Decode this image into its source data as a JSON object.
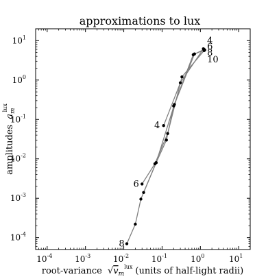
{
  "chart_data": {
    "type": "line",
    "title": "approximations to lux",
    "xlabel_prefix": "root-variance",
    "xlabel_suffix": "(units of half-light radii)",
    "ylabel_prefix": "amplitudes",
    "math": {
      "sqrt_v": "v",
      "sub_m": "m",
      "sup_lux": "lux",
      "a": "a"
    },
    "x_scale": "log",
    "y_scale": "log",
    "xlim": [
      5e-05,
      20
    ],
    "ylim": [
      5e-05,
      20
    ],
    "x_ticks": [
      {
        "value": 0.0001,
        "base": "10",
        "exp": "-4"
      },
      {
        "value": 0.001,
        "base": "10",
        "exp": "-3"
      },
      {
        "value": 0.01,
        "base": "10",
        "exp": "-2"
      },
      {
        "value": 0.1,
        "base": "10",
        "exp": "-1"
      },
      {
        "value": 1,
        "base": "10",
        "exp": "0"
      },
      {
        "value": 10,
        "base": "10",
        "exp": "1"
      }
    ],
    "y_ticks": [
      {
        "value": 0.0001,
        "base": "10",
        "exp": "-4"
      },
      {
        "value": 0.001,
        "base": "10",
        "exp": "-3"
      },
      {
        "value": 0.01,
        "base": "10",
        "exp": "-2"
      },
      {
        "value": 0.1,
        "base": "10",
        "exp": "-1"
      },
      {
        "value": 1,
        "base": "10",
        "exp": "0"
      },
      {
        "value": 10,
        "base": "10",
        "exp": "1"
      }
    ],
    "grid": false,
    "line_color": "#808080",
    "marker_color": "#000000",
    "series": [
      {
        "name": "4",
        "x": [
          0.11,
          0.3,
          1.2
        ],
        "y": [
          0.07,
          0.85,
          6.2
        ]
      },
      {
        "name": "6",
        "x": [
          0.03,
          0.065,
          0.14,
          0.33,
          1.25
        ],
        "y": [
          0.0023,
          0.0075,
          0.044,
          1.2,
          5.6
        ]
      },
      {
        "name": "8",
        "x": [
          0.012,
          0.02,
          0.028,
          0.07,
          0.13,
          0.2,
          0.65,
          1.25
        ],
        "y": [
          7e-05,
          0.00022,
          0.00095,
          0.008,
          0.03,
          0.22,
          4.4,
          6.0
        ]
      },
      {
        "name": "10",
        "x": [
          0.033,
          0.07,
          0.21,
          0.7,
          1.3
        ],
        "y": [
          0.0014,
          0.008,
          0.24,
          4.6,
          5.8
        ]
      }
    ],
    "annotations": [
      {
        "text": "4",
        "x": 0.088,
        "y": 0.07,
        "anchor": "end"
      },
      {
        "text": "6",
        "x": 0.025,
        "y": 0.0023,
        "anchor": "end"
      },
      {
        "text": "8",
        "x": 0.0105,
        "y": 7e-05,
        "anchor": "end"
      },
      {
        "text": "4",
        "x": 1.5,
        "y": 10,
        "anchor": "start"
      },
      {
        "text": "6",
        "x": 1.5,
        "y": 7.0,
        "anchor": "start"
      },
      {
        "text": "8",
        "x": 1.5,
        "y": 4.9,
        "anchor": "start"
      },
      {
        "text": "10",
        "x": 1.5,
        "y": 3.3,
        "anchor": "start"
      }
    ]
  }
}
